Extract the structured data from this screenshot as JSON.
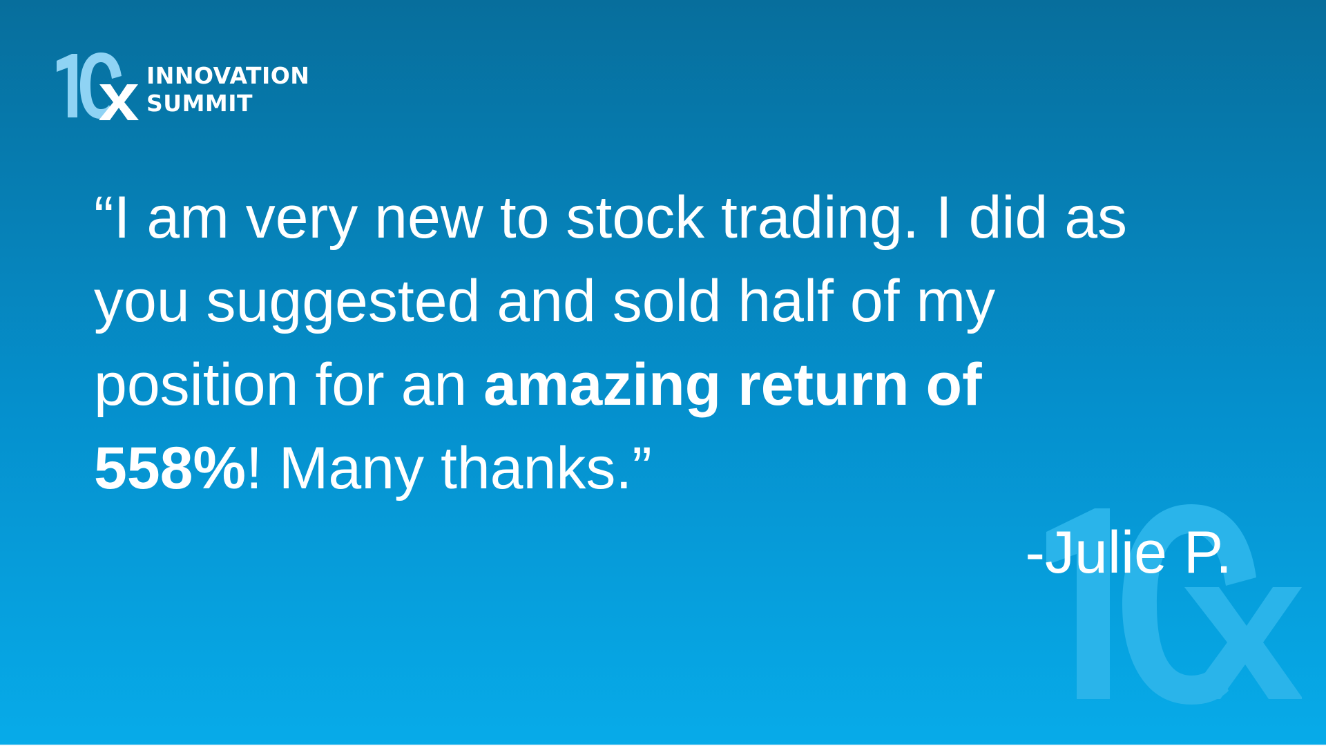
{
  "logo": {
    "mark_text": "10x",
    "line1": "INNOVATION",
    "line2": "SUMMIT"
  },
  "quote": {
    "line1": "“I am very new to stock trading. I did as",
    "line2": "you suggested and sold half of my",
    "line3_regular": "position for an ",
    "line3_bold": "amazing return of",
    "line4_bold": "558%",
    "line4_regular": "! Many thanks.”"
  },
  "attribution": "-Julie P.",
  "colors": {
    "background_top": "#076e9c",
    "background_bottom": "#07abe9",
    "text": "#ffffff",
    "logo_light": "#8fd3f4",
    "watermark": "#2ab4ea"
  },
  "icons": {
    "logo_mark": "10x-logo-icon",
    "watermark": "10x-watermark-icon"
  }
}
